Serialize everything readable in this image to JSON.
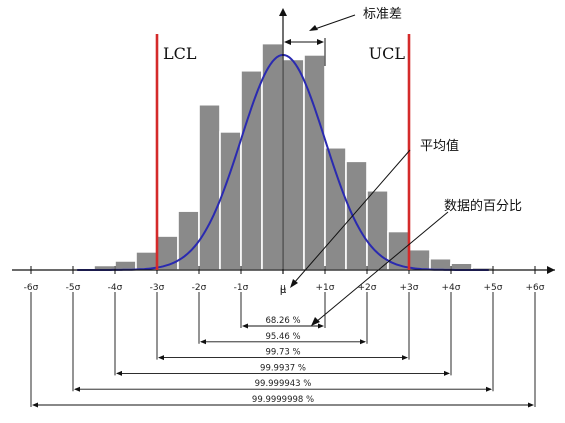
{
  "chart_data": {
    "type": "bar",
    "title": "",
    "xlabel": "",
    "ylabel": "",
    "x_ticks": [
      "-6σ",
      "-5σ",
      "-4σ",
      "-3σ",
      "-2σ",
      "-1σ",
      "μ",
      "+1σ",
      "+2σ",
      "+3σ",
      "+4σ",
      "+5σ",
      "+6σ"
    ],
    "tick_values": [
      -6,
      -5,
      -4,
      -3,
      -2,
      -1,
      0,
      1,
      2,
      3,
      4,
      5,
      6
    ],
    "xlim": [
      -6.3,
      6.3
    ],
    "ylim": [
      0,
      1.06
    ],
    "series": [
      {
        "kind": "histogram",
        "bin_width": 0.5,
        "bin_starts": [
          -4.5,
          -4.0,
          -3.5,
          -3.0,
          -2.5,
          -2.0,
          -1.5,
          -1.0,
          -0.5,
          0.0,
          0.5,
          1.0,
          1.5,
          2.0,
          2.5,
          3.0,
          3.5,
          4.0,
          4.5
        ],
        "values": [
          0.02,
          0.04,
          0.08,
          0.15,
          0.26,
          0.73,
          0.61,
          0.88,
          1.0,
          0.93,
          0.95,
          0.54,
          0.48,
          0.35,
          0.17,
          0.09,
          0.05,
          0.03,
          0.01
        ]
      },
      {
        "kind": "normal-curve",
        "mean": 0,
        "sd": 1,
        "peak": 0.95
      }
    ],
    "limits": [
      {
        "label": "LCL",
        "x": -3
      },
      {
        "label": "UCL",
        "x": 3
      }
    ],
    "annotations": {
      "std_dev": "标准差",
      "mean": "平均值",
      "data_percent": "数据的百分比"
    },
    "coverage": [
      {
        "sigma": 1,
        "label": "68.26 %"
      },
      {
        "sigma": 2,
        "label": "95.46 %"
      },
      {
        "sigma": 3,
        "label": "99.73 %"
      },
      {
        "sigma": 4,
        "label": "99.9937 %"
      },
      {
        "sigma": 5,
        "label": "99.999943 %"
      },
      {
        "sigma": 6,
        "label": "99.9999998 %"
      }
    ]
  },
  "colors": {
    "bar": "#8a8a8a",
    "bar_edge": "#ffffff",
    "curve": "#2a2ab0",
    "limit_line": "#d42a2a",
    "axis": "#111111"
  }
}
